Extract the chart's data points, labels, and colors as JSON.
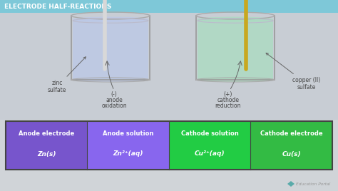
{
  "bg_color": "#cdd0d4",
  "title": "ELECTRODE HALF-REACTIONS",
  "title_bg": "#7ec8d8",
  "title_color": "white",
  "beaker_left_fill": "#bbc8e8",
  "beaker_right_fill": "#aaddc0",
  "electrode_left_color": "#d8d8d8",
  "electrode_right_color": "#c8a820",
  "table_row1": [
    "Anode electrode",
    "Anode solution",
    "Cathode solution",
    "Cathode electrode"
  ],
  "table_row2": [
    "Zn(s)",
    "Zn²⁺(aq)",
    "Cu²⁺(aq)",
    "Cu(s)"
  ],
  "col_colors": [
    "#7755cc",
    "#8866ee",
    "#22cc44",
    "#33bb44"
  ],
  "table_border": "#444444",
  "text_color_table": "white",
  "education_portal_text": "Education Portal",
  "bg_upper": "#c8cdd4",
  "label_color": "#444444"
}
